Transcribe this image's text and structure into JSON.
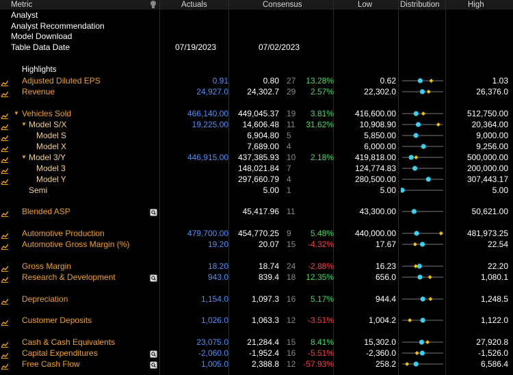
{
  "header": {
    "metric": "Metric",
    "actuals": "Actuals",
    "consensus": "Consensus",
    "low": "Low",
    "distribution": "Distribution",
    "high": "High"
  },
  "info": {
    "analyst": "Analyst",
    "analyst_recommendation": "Analyst Recommendation",
    "model_download": "Model Download",
    "table_data_date": "Table Data Date",
    "actuals_date": "07/19/2023",
    "consensus_date": "07/02/2023"
  },
  "highlights_label": "Highlights",
  "colors": {
    "label": "#f0a020",
    "label_indent": "#f5d28a",
    "actual": "#4f8ff7",
    "positive": "#3ddc5f",
    "negative": "#ff3b3b",
    "dot": "#3bd0f0",
    "diamond": "#f5c400"
  },
  "rows": [
    {
      "label": "Adjusted Diluted EPS",
      "actual": "0.91",
      "consensus": "0.80",
      "count": "27",
      "pct": "13.28%",
      "pct_sign": "pos",
      "low": "0.62",
      "high": "1.03",
      "dist": {
        "low": 0.62,
        "high": 1.03,
        "cons": 0.8,
        "act": 0.91
      }
    },
    {
      "label": "Revenue",
      "actual": "24,927.0",
      "consensus": "24,302.7",
      "count": "29",
      "pct": "2.57%",
      "pct_sign": "pos",
      "low": "22,302.0",
      "high": "26,376.0",
      "dist": {
        "low": 22302,
        "high": 26376,
        "cons": 24302.7,
        "act": 24927
      }
    },
    {
      "label": "Vehicles Sold",
      "actual": "466,140.00",
      "consensus": "449,045.37",
      "count": "19",
      "pct": "3.81%",
      "pct_sign": "pos",
      "low": "416,600.00",
      "high": "512,750.00",
      "dist": {
        "low": 416600,
        "high": 512750,
        "cons": 449045.37,
        "act": 466140
      }
    },
    {
      "label": "Model S/X",
      "actual": "19,225.00",
      "consensus": "14,606.48",
      "count": "11",
      "pct": "31.62%",
      "pct_sign": "pos",
      "low": "10,908.90",
      "high": "20,364.00",
      "dist": {
        "low": 10908.9,
        "high": 20364,
        "cons": 14606.48,
        "act": 19225
      }
    },
    {
      "label": "Model S",
      "actual": "",
      "consensus": "6,904.80",
      "count": "5",
      "pct": "",
      "pct_sign": "",
      "low": "5,850.00",
      "high": "9,000.00",
      "dist": {
        "low": 5850,
        "high": 9000,
        "cons": 6904.8,
        "act": null
      }
    },
    {
      "label": "Model X",
      "actual": "",
      "consensus": "7,689.00",
      "count": "4",
      "pct": "",
      "pct_sign": "",
      "low": "6,000.00",
      "high": "9,256.00",
      "dist": {
        "low": 6000,
        "high": 9256,
        "cons": 7689,
        "act": null
      }
    },
    {
      "label": "Model 3/Y",
      "actual": "446,915.00",
      "consensus": "437,385.93",
      "count": "10",
      "pct": "2.18%",
      "pct_sign": "pos",
      "low": "419,818.00",
      "high": "500,000.00",
      "dist": {
        "low": 419818,
        "high": 500000,
        "cons": 437385.93,
        "act": 446915
      }
    },
    {
      "label": "Model 3",
      "actual": "",
      "consensus": "148,021.84",
      "count": "7",
      "pct": "",
      "pct_sign": "",
      "low": "124,774.83",
      "high": "200,000.00",
      "dist": {
        "low": 124774.83,
        "high": 200000,
        "cons": 148021.84,
        "act": null
      }
    },
    {
      "label": "Model Y",
      "actual": "",
      "consensus": "297,660.79",
      "count": "4",
      "pct": "",
      "pct_sign": "",
      "low": "280,500.00",
      "high": "307,443.17",
      "dist": {
        "low": 280500,
        "high": 307443.17,
        "cons": 297660.79,
        "act": null
      }
    },
    {
      "label": "Semi",
      "actual": "",
      "consensus": "5.00",
      "count": "1",
      "pct": "",
      "pct_sign": "",
      "low": "5.00",
      "high": "5.00",
      "dist": {
        "low": 5,
        "high": 5,
        "cons": 5,
        "act": null
      }
    },
    {
      "label": "Blended ASP",
      "actual": "",
      "consensus": "45,417.96",
      "count": "11",
      "pct": "",
      "pct_sign": "",
      "low": "43,300.00",
      "high": "50,621.00",
      "dist": {
        "low": 43300,
        "high": 50621,
        "cons": 45417.96,
        "act": null
      }
    },
    {
      "label": "Automotive Production",
      "actual": "479,700.00",
      "consensus": "454,770.25",
      "count": "9",
      "pct": "5.48%",
      "pct_sign": "pos",
      "low": "440,000.00",
      "high": "481,973.25",
      "dist": {
        "low": 440000,
        "high": 481973.25,
        "cons": 454770.25,
        "act": 479700
      }
    },
    {
      "label": "Automotive Gross Margin (%)",
      "actual": "19.20",
      "consensus": "20.07",
      "count": "15",
      "pct": "-4.32%",
      "pct_sign": "neg",
      "low": "17.67",
      "high": "22.54",
      "dist": {
        "low": 17.67,
        "high": 22.54,
        "cons": 20.07,
        "act": 19.2
      }
    },
    {
      "label": "Gross Margin",
      "actual": "18.20",
      "consensus": "18.74",
      "count": "24",
      "pct": "-2.88%",
      "pct_sign": "neg",
      "low": "16.23",
      "high": "22.20",
      "dist": {
        "low": 16.23,
        "high": 22.2,
        "cons": 18.74,
        "act": 18.2
      }
    },
    {
      "label": "Research & Development",
      "actual": "943.0",
      "consensus": "839.4",
      "count": "18",
      "pct": "12.35%",
      "pct_sign": "pos",
      "low": "656.0",
      "high": "1,080.1",
      "dist": {
        "low": 656,
        "high": 1080.1,
        "cons": 839.4,
        "act": 943
      }
    },
    {
      "label": "Depreciation",
      "actual": "1,154.0",
      "consensus": "1,097.3",
      "count": "16",
      "pct": "5.17%",
      "pct_sign": "pos",
      "low": "944.4",
      "high": "1,248.5",
      "dist": {
        "low": 944.4,
        "high": 1248.5,
        "cons": 1097.3,
        "act": 1154
      }
    },
    {
      "label": "Customer Deposits",
      "actual": "1,026.0",
      "consensus": "1,063.3",
      "count": "12",
      "pct": "-3.51%",
      "pct_sign": "neg",
      "low": "1,004.2",
      "high": "1,122.0",
      "dist": {
        "low": 1004.2,
        "high": 1122,
        "cons": 1063.3,
        "act": 1026
      }
    },
    {
      "label": "Cash & Cash Equivalents",
      "actual": "23,075.0",
      "consensus": "21,284.4",
      "count": "15",
      "pct": "8.41%",
      "pct_sign": "pos",
      "low": "15,302.0",
      "high": "27,920.8",
      "dist": {
        "low": 15302,
        "high": 27920.8,
        "cons": 21284.4,
        "act": 23075
      }
    },
    {
      "label": "Capital Expenditures",
      "actual": "-2,060.0",
      "consensus": "-1,952.4",
      "count": "16",
      "pct": "-5.51%",
      "pct_sign": "neg",
      "low": "-2,360.0",
      "high": "-1,526.0",
      "dist": {
        "low": -2360,
        "high": -1526,
        "cons": -1952.4,
        "act": -2060
      }
    },
    {
      "label": "Free Cash Flow",
      "actual": "1,005.0",
      "consensus": "2,388.8",
      "count": "12",
      "pct": "-57.93%",
      "pct_sign": "neg",
      "low": "258.2",
      "high": "6,586.4",
      "dist": {
        "low": 258.2,
        "high": 6586.4,
        "cons": 2388.8,
        "act": 1005
      }
    }
  ]
}
